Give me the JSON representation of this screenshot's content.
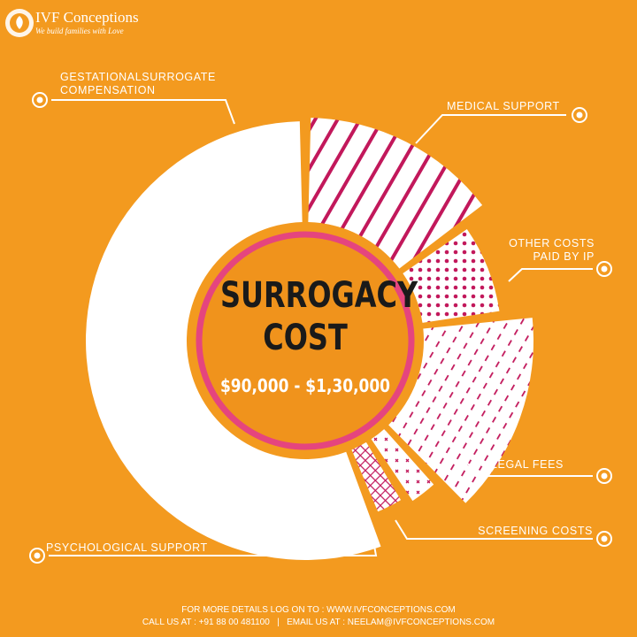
{
  "header": {
    "brand": "IVF Conceptions",
    "tagline": "We build families with Love"
  },
  "chart_data": {
    "type": "donut",
    "title": "SURROGACY COST",
    "subtitle": "$90,000 - $1,30,000",
    "categories": [
      "MEDICAL SUPPORT",
      "OTHER COSTS\nPAID BY IP",
      "LEGAL FEES",
      "SCREENING COSTS",
      "PSYCHOLOGICAL SUPPORT",
      "GESTATIONALSURROGATE\nCOMPENSATION"
    ],
    "values": [
      15,
      8,
      15,
      3,
      3,
      56
    ]
  },
  "footer": {
    "line1": "FOR MORE DETAILS LOG ON TO : WWW.IVFCONCEPTIONS.COM",
    "line2": "CALL US AT : +91 88 00 481100   |   EMAIL US AT : NEELAM@IVFCONCEPTIONS.COM"
  }
}
